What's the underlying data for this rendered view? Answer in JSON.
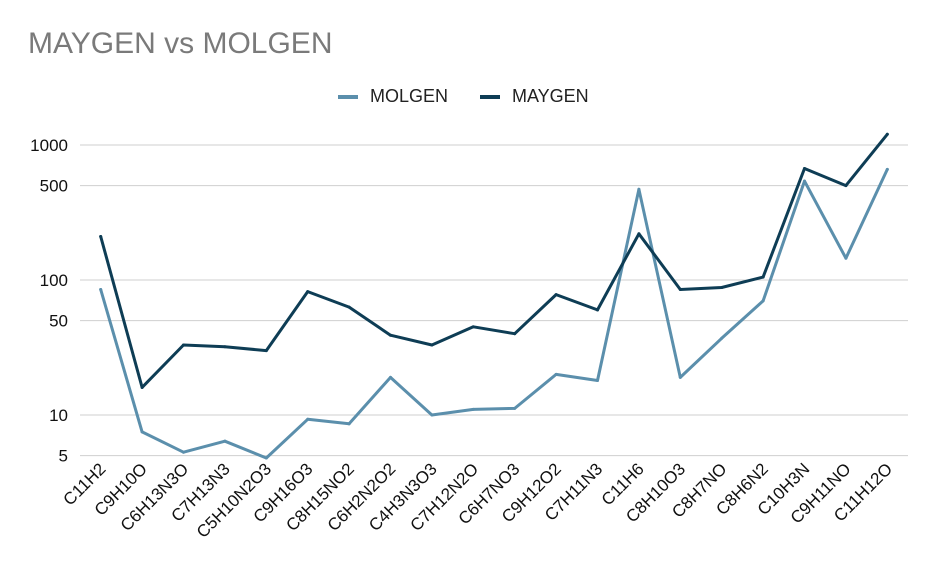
{
  "chart_data": {
    "type": "line",
    "title": "MAYGEN vs MOLGEN",
    "xlabel": "",
    "ylabel": "",
    "y_scale": "log",
    "ylim": [
      5,
      1300
    ],
    "y_ticks": [
      5,
      10,
      50,
      100,
      500,
      1000
    ],
    "grid": true,
    "legend_position": "top",
    "categories": [
      "C11H2",
      "C9H10O",
      "C6H13N3O",
      "C7H13N3",
      "C5H10N2O3",
      "C9H16O3",
      "C8H15NO2",
      "C6H2N2O2",
      "C4H3N3O3",
      "C7H12N2O",
      "C6H7NO3",
      "C9H12O2",
      "C7H11N3",
      "C11H6",
      "C8H10O3",
      "C8H7NO",
      "C8H6N2",
      "C10H3N",
      "C9H11NO",
      "C11H12O"
    ],
    "series": [
      {
        "name": "MOLGEN",
        "color": "#5b8fac",
        "values": [
          85,
          7.5,
          5.3,
          6.4,
          4.8,
          9.3,
          8.6,
          19,
          10,
          11,
          11.2,
          20,
          18,
          470,
          19,
          37,
          70,
          540,
          145,
          660
        ]
      },
      {
        "name": "MAYGEN",
        "color": "#0e3d55",
        "values": [
          210,
          16,
          33,
          32,
          30,
          82,
          63,
          39,
          33,
          45,
          40,
          78,
          60,
          220,
          85,
          88,
          105,
          670,
          500,
          1200
        ]
      }
    ]
  }
}
